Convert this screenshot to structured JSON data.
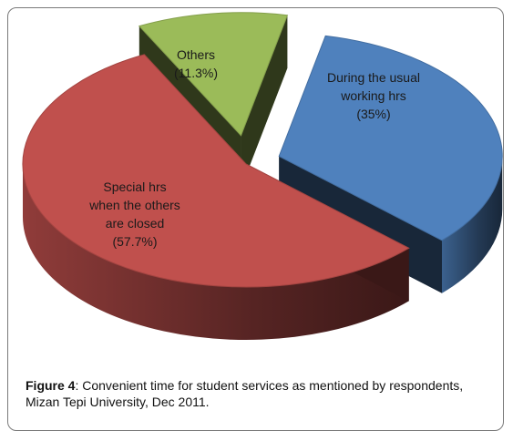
{
  "chart_data": {
    "type": "pie",
    "title": "",
    "slices": [
      {
        "label_lines": [
          "During the usual",
          "working  hrs"
        ],
        "value_label": "(35%)",
        "value": 35.0,
        "color": "#4f81bd"
      },
      {
        "label_lines": [
          "Special hrs",
          "when the others",
          "are closed"
        ],
        "value_label": "(57.7%)",
        "value": 57.7,
        "color": "#c0504d"
      },
      {
        "label_lines": [
          "Others"
        ],
        "value_label": "(11.3%)",
        "value": 11.3,
        "color": "#9bbb59"
      }
    ],
    "legend": "none"
  },
  "caption": {
    "label": "Figure 4",
    "text": ": Convenient time for student services as mentioned by respondents, Mizan Tepi University, Dec 2011."
  }
}
